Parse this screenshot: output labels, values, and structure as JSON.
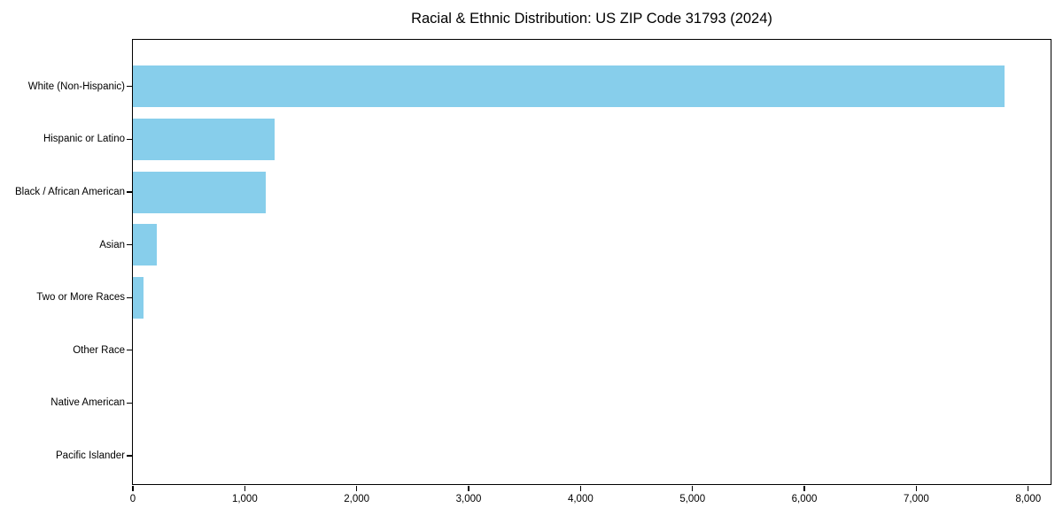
{
  "chart_data": {
    "type": "bar",
    "orientation": "horizontal",
    "title": "Racial & Ethnic Distribution: US ZIP Code 31793 (2024)",
    "categories": [
      "White (Non-Hispanic)",
      "Hispanic or Latino",
      "Black / African American",
      "Asian",
      "Two or More Races",
      "Other Race",
      "Native American",
      "Pacific Islander"
    ],
    "values": [
      7790,
      1265,
      1185,
      215,
      95,
      0,
      0,
      0
    ],
    "xlabel": "",
    "ylabel": "",
    "xlim": [
      0,
      8200
    ],
    "x_ticks": [
      0,
      1000,
      2000,
      3000,
      4000,
      5000,
      6000,
      7000,
      8000
    ],
    "x_tick_labels": [
      "0",
      "1,000",
      "2,000",
      "3,000",
      "4,000",
      "5,000",
      "6,000",
      "7,000",
      "8,000"
    ],
    "bar_color": "#87CEEB",
    "axis_color": "#000000",
    "text_color": "#000000",
    "background": "#FFFFFF",
    "grid": false,
    "legend": "none"
  }
}
